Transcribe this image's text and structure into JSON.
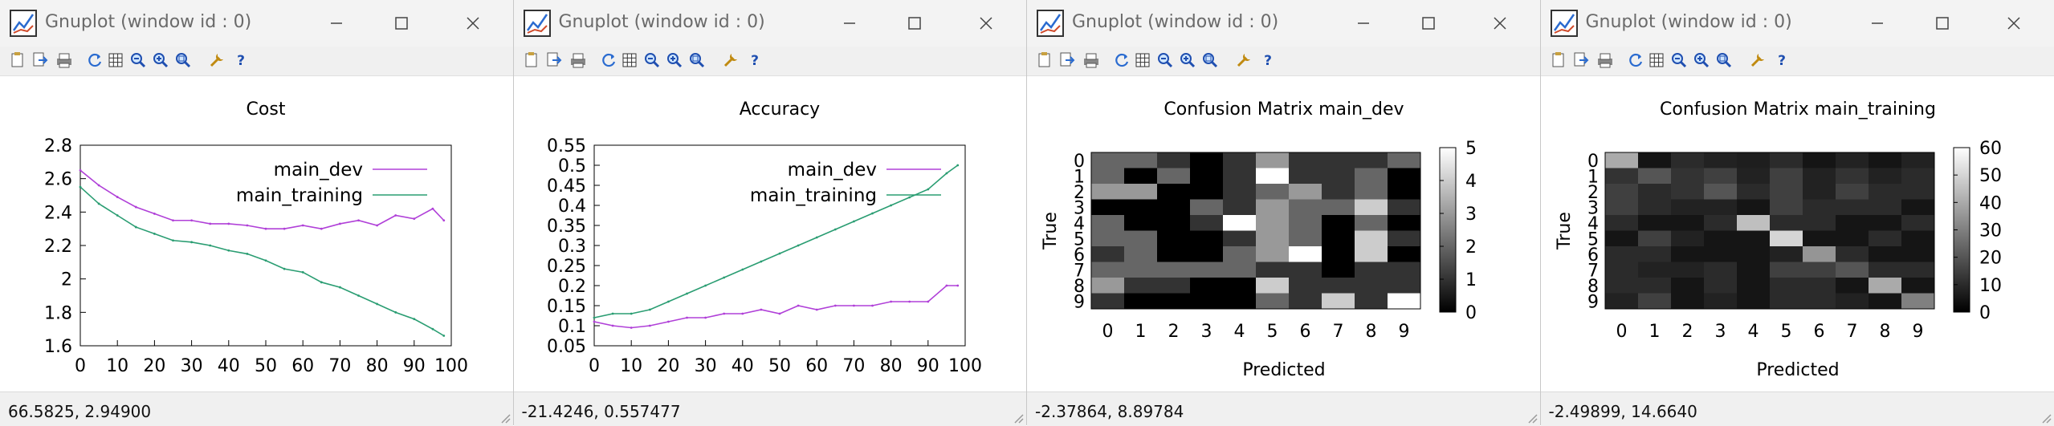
{
  "windows": [
    {
      "title": "Gnuplot (window id : 0)",
      "status_coords": "66.5825,  2.94900",
      "plot": {
        "kind": "line",
        "title": "Cost",
        "x_ticks": [
          "0",
          "10",
          "20",
          "30",
          "40",
          "50",
          "60",
          "70",
          "80",
          "90",
          "100"
        ],
        "y_ticks": [
          "1.6",
          "1.8",
          "2",
          "2.2",
          "2.4",
          "2.6",
          "2.8"
        ],
        "legend": [
          "main_dev",
          "main_training"
        ]
      }
    },
    {
      "title": "Gnuplot (window id : 0)",
      "status_coords": "-21.4246,  0.557477",
      "plot": {
        "kind": "line",
        "title": "Accuracy",
        "x_ticks": [
          "0",
          "10",
          "20",
          "30",
          "40",
          "50",
          "60",
          "70",
          "80",
          "90",
          "100"
        ],
        "y_ticks": [
          "0.05",
          "0.1",
          "0.15",
          "0.2",
          "0.25",
          "0.3",
          "0.35",
          "0.4",
          "0.45",
          "0.5",
          "0.55"
        ],
        "legend": [
          "main_dev",
          "main_training"
        ]
      }
    },
    {
      "title": "Gnuplot (window id : 0)",
      "status_coords": "-2.37864,  8.89784",
      "plot": {
        "kind": "heatmap",
        "title": "Confusion Matrix main_dev",
        "xlabel": "Predicted",
        "ylabel": "True",
        "x_ticks": [
          "0",
          "1",
          "2",
          "3",
          "4",
          "5",
          "6",
          "7",
          "8",
          "9"
        ],
        "y_ticks": [
          "0",
          "1",
          "2",
          "3",
          "4",
          "5",
          "6",
          "7",
          "8",
          "9"
        ],
        "cb_ticks": [
          "0",
          "1",
          "2",
          "3",
          "4",
          "5"
        ]
      }
    },
    {
      "title": "Gnuplot (window id : 0)",
      "status_coords": "-2.49899,  14.6640",
      "plot": {
        "kind": "heatmap",
        "title": "Confusion Matrix main_training",
        "xlabel": "Predicted",
        "ylabel": "True",
        "x_ticks": [
          "0",
          "1",
          "2",
          "3",
          "4",
          "5",
          "6",
          "7",
          "8",
          "9"
        ],
        "y_ticks": [
          "0",
          "1",
          "2",
          "3",
          "4",
          "5",
          "6",
          "7",
          "8",
          "9"
        ],
        "cb_ticks": [
          "0",
          "10",
          "20",
          "30",
          "40",
          "50",
          "60"
        ]
      }
    }
  ],
  "toolbar_icons": [
    "copy-icon",
    "export-icon",
    "print-icon",
    "replot-icon",
    "grid-icon",
    "zoom-previous-icon",
    "zoom-next-icon",
    "autoscale-icon",
    "options-icon",
    "help-icon"
  ],
  "colors": {
    "dev": "#b040d8",
    "training": "#2a9d72",
    "titlebar": "#f3f3f3",
    "toolbar": "#f0f0f0"
  },
  "chart_data": [
    {
      "type": "line",
      "title": "Cost",
      "xlabel": "",
      "ylabel": "",
      "xlim": [
        0,
        100
      ],
      "ylim": [
        1.6,
        2.8
      ],
      "grid": false,
      "legend": "top-right",
      "x": [
        0,
        5,
        10,
        15,
        20,
        25,
        30,
        35,
        40,
        45,
        50,
        55,
        60,
        65,
        70,
        75,
        80,
        85,
        90,
        95,
        98
      ],
      "series": [
        {
          "name": "main_dev",
          "values": [
            2.65,
            2.56,
            2.49,
            2.43,
            2.39,
            2.35,
            2.35,
            2.33,
            2.33,
            2.32,
            2.3,
            2.3,
            2.32,
            2.3,
            2.33,
            2.35,
            2.32,
            2.38,
            2.36,
            2.42,
            2.35
          ]
        },
        {
          "name": "main_training",
          "values": [
            2.55,
            2.45,
            2.38,
            2.31,
            2.27,
            2.23,
            2.22,
            2.2,
            2.17,
            2.15,
            2.11,
            2.06,
            2.04,
            1.98,
            1.95,
            1.9,
            1.85,
            1.8,
            1.76,
            1.7,
            1.66
          ]
        }
      ]
    },
    {
      "type": "line",
      "title": "Accuracy",
      "xlabel": "",
      "ylabel": "",
      "xlim": [
        0,
        100
      ],
      "ylim": [
        0.05,
        0.55
      ],
      "grid": false,
      "legend": "top-right",
      "x": [
        0,
        5,
        10,
        15,
        20,
        25,
        30,
        35,
        40,
        45,
        50,
        55,
        60,
        65,
        70,
        75,
        80,
        85,
        90,
        95,
        98
      ],
      "series": [
        {
          "name": "main_dev",
          "values": [
            0.11,
            0.1,
            0.095,
            0.1,
            0.11,
            0.12,
            0.12,
            0.13,
            0.13,
            0.14,
            0.13,
            0.15,
            0.14,
            0.15,
            0.15,
            0.15,
            0.16,
            0.16,
            0.16,
            0.2,
            0.2
          ]
        },
        {
          "name": "main_training",
          "values": [
            0.12,
            0.13,
            0.13,
            0.14,
            0.16,
            0.18,
            0.2,
            0.22,
            0.24,
            0.26,
            0.28,
            0.3,
            0.32,
            0.34,
            0.36,
            0.38,
            0.4,
            0.42,
            0.44,
            0.48,
            0.5
          ]
        }
      ]
    },
    {
      "type": "heatmap",
      "title": "Confusion Matrix main_dev",
      "xlabel": "Predicted",
      "ylabel": "True",
      "clim": [
        0,
        5
      ],
      "rows": [
        [
          2,
          2,
          1,
          0,
          1,
          3,
          1,
          1,
          1,
          2
        ],
        [
          2,
          0,
          2,
          0,
          1,
          5,
          1,
          1,
          2,
          0
        ],
        [
          3,
          3,
          0,
          0,
          1,
          2,
          3,
          1,
          2,
          0
        ],
        [
          0,
          0,
          0,
          2,
          1,
          3,
          2,
          2,
          4,
          1
        ],
        [
          2,
          0,
          0,
          1,
          5,
          3,
          2,
          0,
          2,
          0
        ],
        [
          2,
          2,
          0,
          0,
          1,
          3,
          2,
          0,
          4,
          1
        ],
        [
          1,
          2,
          0,
          0,
          2,
          3,
          5,
          0,
          4,
          0
        ],
        [
          2,
          2,
          2,
          2,
          2,
          1,
          1,
          0,
          1,
          1
        ],
        [
          3,
          1,
          1,
          0,
          0,
          4,
          1,
          1,
          1,
          1
        ],
        [
          1,
          0,
          0,
          0,
          0,
          2,
          1,
          4,
          1,
          5
        ]
      ]
    },
    {
      "type": "heatmap",
      "title": "Confusion Matrix main_training",
      "xlabel": "Predicted",
      "ylabel": "True",
      "clim": [
        0,
        60
      ],
      "rows": [
        [
          40,
          5,
          10,
          8,
          7,
          10,
          5,
          8,
          5,
          8
        ],
        [
          12,
          20,
          12,
          15,
          8,
          15,
          8,
          12,
          8,
          10
        ],
        [
          15,
          10,
          12,
          20,
          10,
          15,
          8,
          15,
          10,
          10
        ],
        [
          15,
          10,
          8,
          8,
          5,
          15,
          10,
          10,
          10,
          5
        ],
        [
          10,
          5,
          5,
          10,
          45,
          10,
          10,
          5,
          5,
          10
        ],
        [
          5,
          15,
          8,
          5,
          5,
          50,
          5,
          5,
          10,
          5
        ],
        [
          10,
          10,
          5,
          5,
          5,
          8,
          35,
          10,
          5,
          5
        ],
        [
          10,
          8,
          8,
          10,
          5,
          15,
          15,
          20,
          10,
          10
        ],
        [
          10,
          10,
          5,
          10,
          5,
          10,
          10,
          5,
          40,
          5
        ],
        [
          8,
          15,
          5,
          8,
          5,
          10,
          10,
          8,
          5,
          30
        ]
      ]
    }
  ]
}
